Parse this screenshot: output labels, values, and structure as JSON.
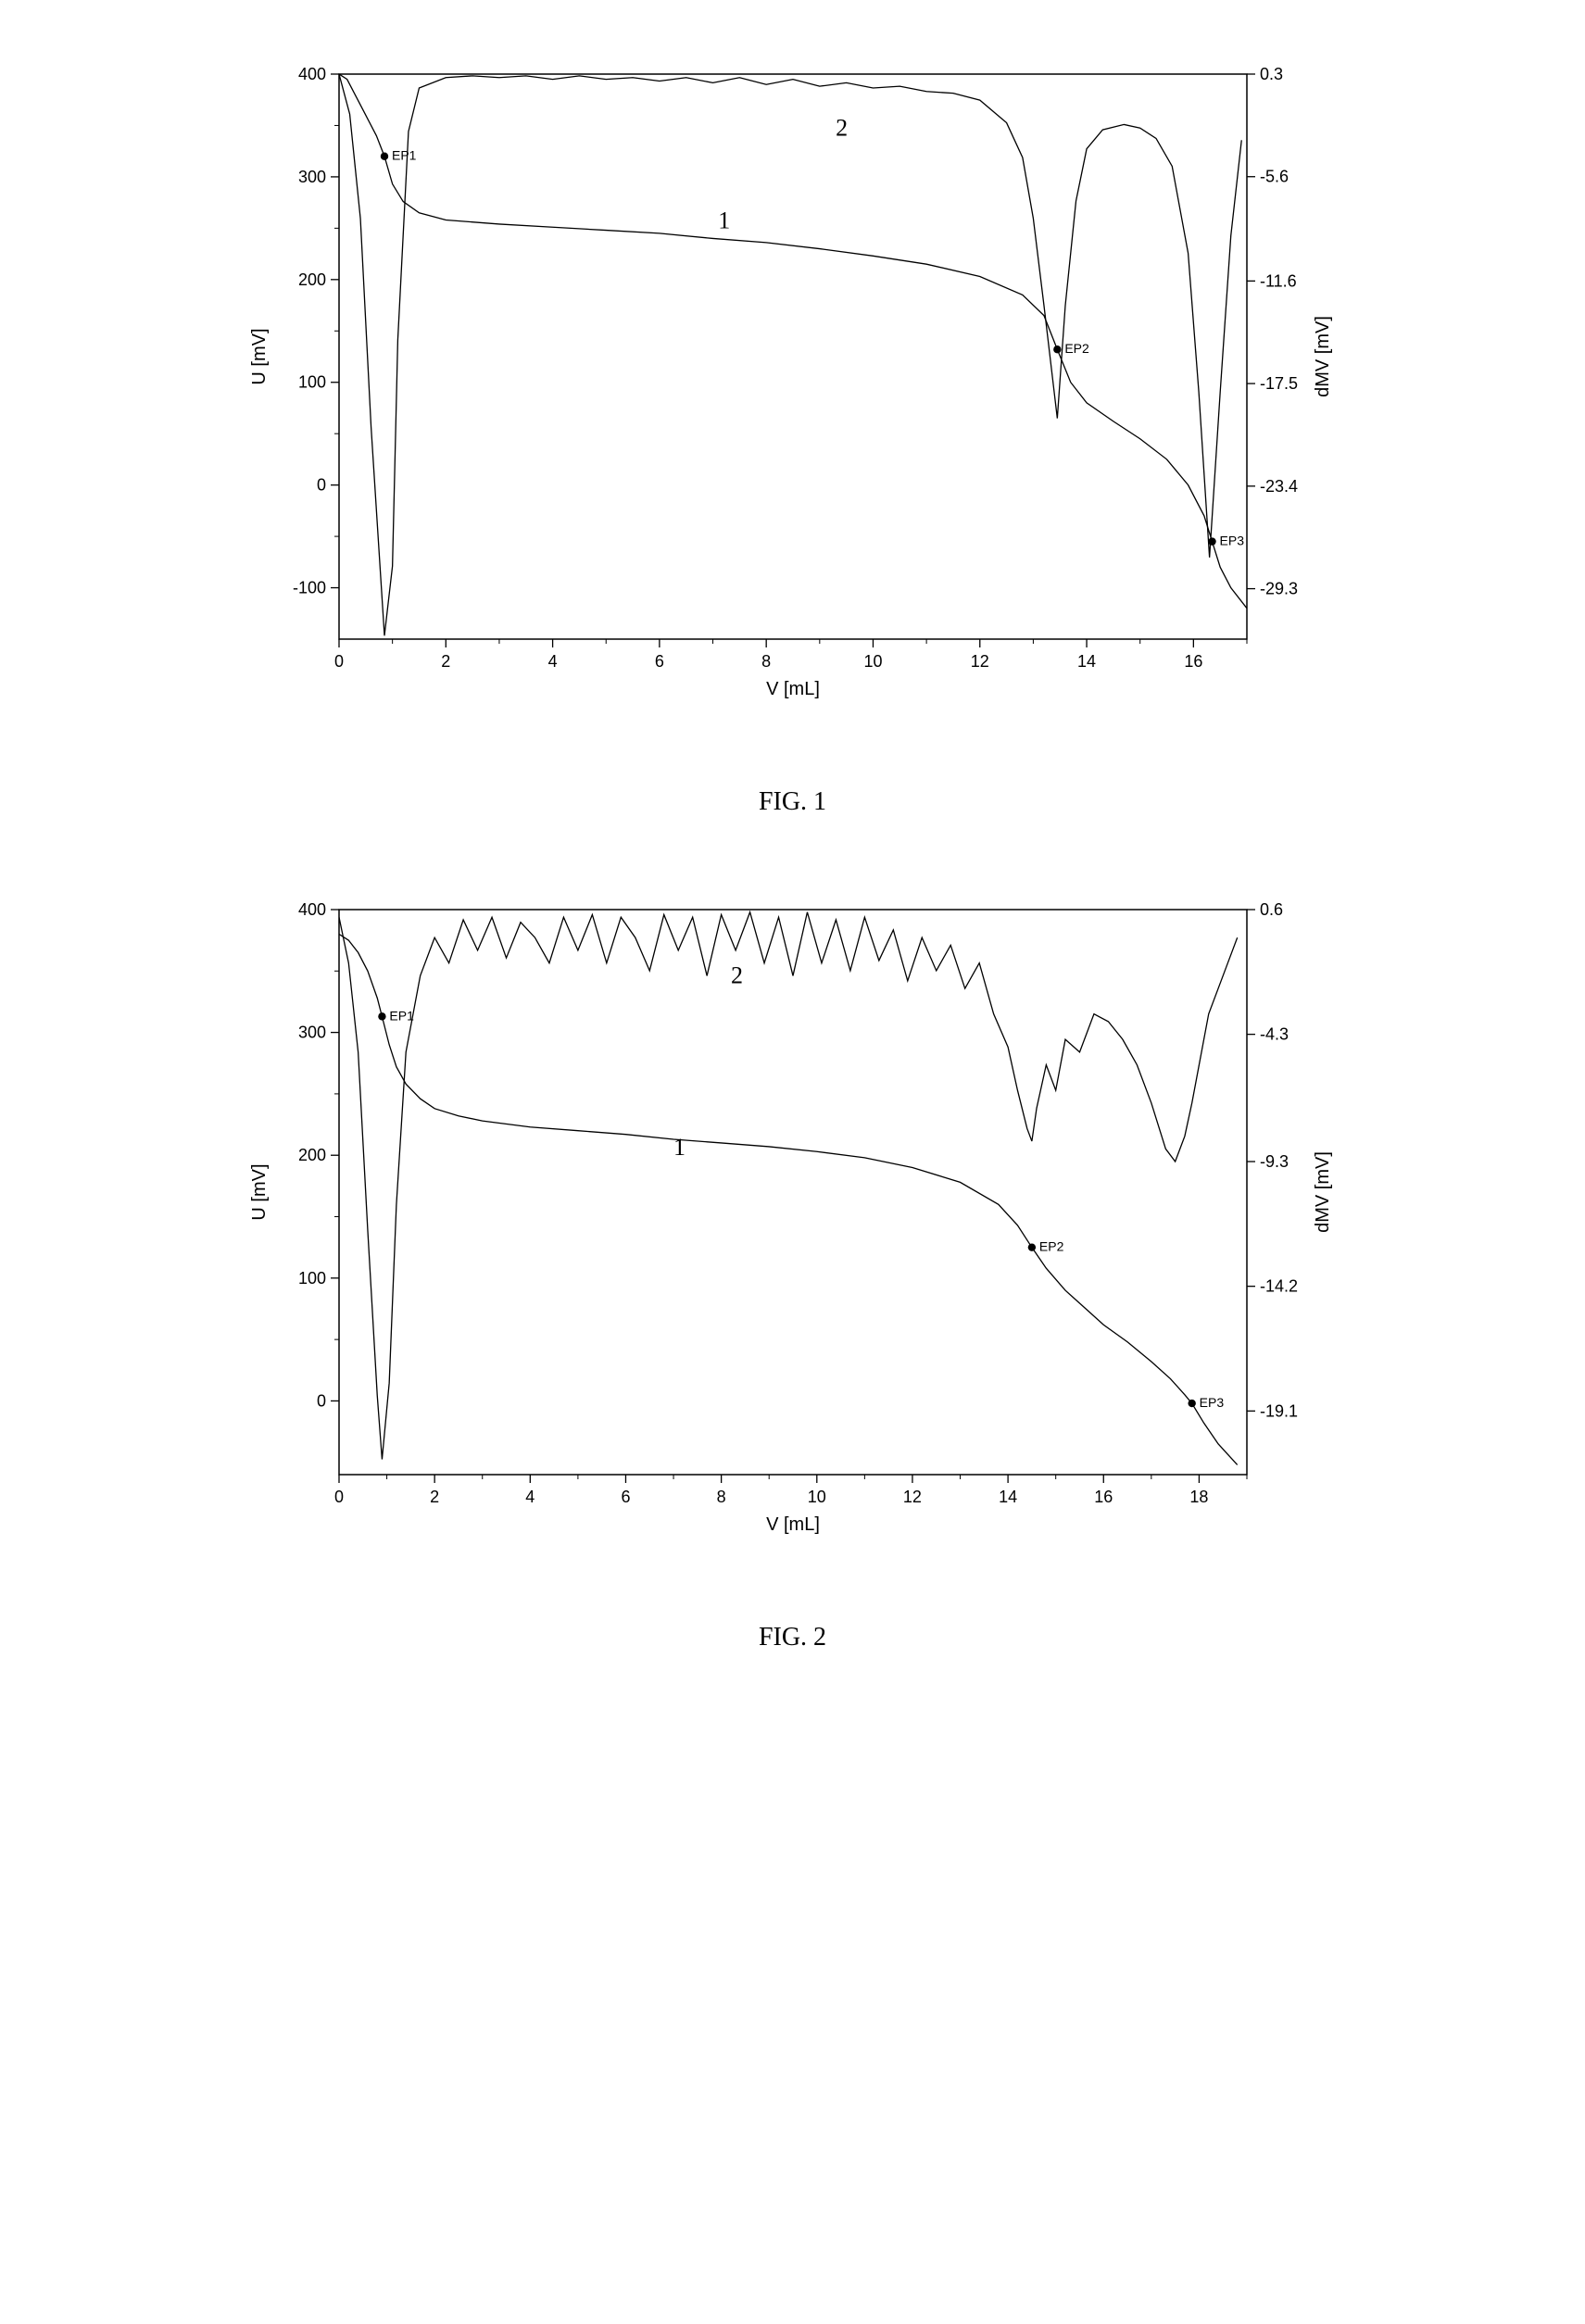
{
  "fig1": {
    "caption": "FIG. 1",
    "xlabel": "V [mL]",
    "ylabel_left": "U [mV]",
    "ylabel_right": "dMV [mV]",
    "xlim": [
      0,
      17
    ],
    "ylim_left": [
      -150,
      400
    ],
    "ylim_right": [
      -32.2,
      0.3
    ],
    "xtick_step": 2,
    "yticks_left": [
      -100,
      0,
      100,
      200,
      300,
      400
    ],
    "yticks_right": [
      0.3,
      -5.6,
      -11.6,
      -17.5,
      -23.4,
      -29.3
    ],
    "colors": {
      "axis": "#000000",
      "curve1": "#000000",
      "curve2": "#000000",
      "bg": "#ffffff"
    },
    "fontsize": {
      "tick": 18,
      "label": 20,
      "annotation": 26,
      "ep": 14
    },
    "line_width": 1.3,
    "annotations": [
      {
        "text": "1",
        "x": 7.1,
        "y_left": 250
      },
      {
        "text": "2",
        "x": 9.3,
        "y_left": 340
      }
    ],
    "ep_markers": [
      {
        "label": "EP1",
        "x": 0.85,
        "y_left": 320
      },
      {
        "label": "EP2",
        "x": 13.45,
        "y_left": 132
      },
      {
        "label": "EP3",
        "x": 16.35,
        "y_left": -55
      }
    ],
    "curve1_data": [
      {
        "x": 0,
        "y": 400
      },
      {
        "x": 0.15,
        "y": 395
      },
      {
        "x": 0.3,
        "y": 380
      },
      {
        "x": 0.5,
        "y": 360
      },
      {
        "x": 0.7,
        "y": 340
      },
      {
        "x": 0.85,
        "y": 320
      },
      {
        "x": 1.0,
        "y": 293
      },
      {
        "x": 1.2,
        "y": 276
      },
      {
        "x": 1.5,
        "y": 265
      },
      {
        "x": 2.0,
        "y": 258
      },
      {
        "x": 3.0,
        "y": 254
      },
      {
        "x": 4.0,
        "y": 251
      },
      {
        "x": 5.0,
        "y": 248
      },
      {
        "x": 6.0,
        "y": 245
      },
      {
        "x": 7.0,
        "y": 240
      },
      {
        "x": 8.0,
        "y": 236
      },
      {
        "x": 9.0,
        "y": 230
      },
      {
        "x": 10.0,
        "y": 223
      },
      {
        "x": 11.0,
        "y": 215
      },
      {
        "x": 12.0,
        "y": 203
      },
      {
        "x": 12.8,
        "y": 185
      },
      {
        "x": 13.2,
        "y": 165
      },
      {
        "x": 13.45,
        "y": 132
      },
      {
        "x": 13.7,
        "y": 100
      },
      {
        "x": 14.0,
        "y": 80
      },
      {
        "x": 14.5,
        "y": 62
      },
      {
        "x": 15.0,
        "y": 45
      },
      {
        "x": 15.5,
        "y": 25
      },
      {
        "x": 15.9,
        "y": 0
      },
      {
        "x": 16.2,
        "y": -30
      },
      {
        "x": 16.35,
        "y": -55
      },
      {
        "x": 16.5,
        "y": -80
      },
      {
        "x": 16.7,
        "y": -100
      },
      {
        "x": 17.0,
        "y": -120
      }
    ],
    "curve2_data": [
      {
        "x": 0,
        "y": 0.3
      },
      {
        "x": 0.2,
        "y": -2.0
      },
      {
        "x": 0.4,
        "y": -8.0
      },
      {
        "x": 0.6,
        "y": -20.0
      },
      {
        "x": 0.85,
        "y": -32.0
      },
      {
        "x": 1.0,
        "y": -28.0
      },
      {
        "x": 1.1,
        "y": -15.0
      },
      {
        "x": 1.3,
        "y": -3.0
      },
      {
        "x": 1.5,
        "y": -0.5
      },
      {
        "x": 2.0,
        "y": 0.1
      },
      {
        "x": 2.5,
        "y": 0.2
      },
      {
        "x": 3.0,
        "y": 0.1
      },
      {
        "x": 3.5,
        "y": 0.2
      },
      {
        "x": 4.0,
        "y": 0.0
      },
      {
        "x": 4.5,
        "y": 0.2
      },
      {
        "x": 5.0,
        "y": 0.0
      },
      {
        "x": 5.5,
        "y": 0.1
      },
      {
        "x": 6.0,
        "y": -0.1
      },
      {
        "x": 6.5,
        "y": 0.1
      },
      {
        "x": 7.0,
        "y": -0.2
      },
      {
        "x": 7.5,
        "y": 0.1
      },
      {
        "x": 8.0,
        "y": -0.3
      },
      {
        "x": 8.5,
        "y": 0.0
      },
      {
        "x": 9.0,
        "y": -0.4
      },
      {
        "x": 9.5,
        "y": -0.2
      },
      {
        "x": 10.0,
        "y": -0.5
      },
      {
        "x": 10.5,
        "y": -0.4
      },
      {
        "x": 11.0,
        "y": -0.7
      },
      {
        "x": 11.5,
        "y": -0.8
      },
      {
        "x": 12.0,
        "y": -1.2
      },
      {
        "x": 12.5,
        "y": -2.5
      },
      {
        "x": 12.8,
        "y": -4.5
      },
      {
        "x": 13.0,
        "y": -8.0
      },
      {
        "x": 13.2,
        "y": -13.0
      },
      {
        "x": 13.45,
        "y": -19.5
      },
      {
        "x": 13.6,
        "y": -13.0
      },
      {
        "x": 13.8,
        "y": -7.0
      },
      {
        "x": 14.0,
        "y": -4.0
      },
      {
        "x": 14.3,
        "y": -2.9
      },
      {
        "x": 14.7,
        "y": -2.6
      },
      {
        "x": 15.0,
        "y": -2.8
      },
      {
        "x": 15.3,
        "y": -3.4
      },
      {
        "x": 15.6,
        "y": -5.0
      },
      {
        "x": 15.9,
        "y": -10.0
      },
      {
        "x": 16.1,
        "y": -18.0
      },
      {
        "x": 16.3,
        "y": -27.5
      },
      {
        "x": 16.5,
        "y": -18.0
      },
      {
        "x": 16.7,
        "y": -9.0
      },
      {
        "x": 16.9,
        "y": -3.5
      }
    ]
  },
  "fig2": {
    "caption": "FIG. 2",
    "xlabel": "V [mL]",
    "ylabel_left": "U [mV]",
    "ylabel_right": "dMV [mV]",
    "xlim": [
      0,
      19
    ],
    "ylim_left": [
      -60,
      400
    ],
    "ylim_right": [
      -21.6,
      0.6
    ],
    "xtick_step": 2,
    "yticks_left": [
      0,
      100,
      200,
      300,
      400
    ],
    "yticks_right": [
      0.6,
      -4.3,
      -9.3,
      -14.2,
      -19.1
    ],
    "colors": {
      "axis": "#000000",
      "curve1": "#000000",
      "curve2": "#000000",
      "bg": "#ffffff"
    },
    "fontsize": {
      "tick": 18,
      "label": 20,
      "annotation": 26,
      "ep": 14
    },
    "line_width": 1.3,
    "annotations": [
      {
        "text": "1",
        "x": 7.0,
        "y_left": 200
      },
      {
        "text": "2",
        "x": 8.2,
        "y_left": 340
      }
    ],
    "ep_markers": [
      {
        "label": "EP1",
        "x": 0.9,
        "y_left": 313
      },
      {
        "label": "EP2",
        "x": 14.5,
        "y_left": 125
      },
      {
        "label": "EP3",
        "x": 17.85,
        "y_left": -2
      }
    ],
    "curve1_data": [
      {
        "x": 0,
        "y": 380
      },
      {
        "x": 0.2,
        "y": 375
      },
      {
        "x": 0.4,
        "y": 365
      },
      {
        "x": 0.6,
        "y": 350
      },
      {
        "x": 0.8,
        "y": 328
      },
      {
        "x": 0.9,
        "y": 313
      },
      {
        "x": 1.05,
        "y": 290
      },
      {
        "x": 1.2,
        "y": 272
      },
      {
        "x": 1.4,
        "y": 258
      },
      {
        "x": 1.7,
        "y": 246
      },
      {
        "x": 2.0,
        "y": 238
      },
      {
        "x": 2.5,
        "y": 232
      },
      {
        "x": 3.0,
        "y": 228
      },
      {
        "x": 4.0,
        "y": 223
      },
      {
        "x": 5.0,
        "y": 220
      },
      {
        "x": 6.0,
        "y": 217
      },
      {
        "x": 7.0,
        "y": 213
      },
      {
        "x": 8.0,
        "y": 210
      },
      {
        "x": 9.0,
        "y": 207
      },
      {
        "x": 10.0,
        "y": 203
      },
      {
        "x": 11.0,
        "y": 198
      },
      {
        "x": 12.0,
        "y": 190
      },
      {
        "x": 13.0,
        "y": 178
      },
      {
        "x": 13.8,
        "y": 160
      },
      {
        "x": 14.2,
        "y": 143
      },
      {
        "x": 14.5,
        "y": 125
      },
      {
        "x": 14.8,
        "y": 108
      },
      {
        "x": 15.2,
        "y": 90
      },
      {
        "x": 15.6,
        "y": 76
      },
      {
        "x": 16.0,
        "y": 62
      },
      {
        "x": 16.5,
        "y": 48
      },
      {
        "x": 17.0,
        "y": 32
      },
      {
        "x": 17.4,
        "y": 18
      },
      {
        "x": 17.7,
        "y": 5
      },
      {
        "x": 17.85,
        "y": -2
      },
      {
        "x": 18.1,
        "y": -18
      },
      {
        "x": 18.4,
        "y": -35
      },
      {
        "x": 18.8,
        "y": -52
      }
    ],
    "curve2_data": [
      {
        "x": 0,
        "y": 0.3
      },
      {
        "x": 0.2,
        "y": -1.5
      },
      {
        "x": 0.4,
        "y": -5.0
      },
      {
        "x": 0.6,
        "y": -12.0
      },
      {
        "x": 0.8,
        "y": -18.5
      },
      {
        "x": 0.9,
        "y": -21.0
      },
      {
        "x": 1.05,
        "y": -18.0
      },
      {
        "x": 1.2,
        "y": -11.0
      },
      {
        "x": 1.4,
        "y": -5.0
      },
      {
        "x": 1.7,
        "y": -2.0
      },
      {
        "x": 2.0,
        "y": -0.5
      },
      {
        "x": 2.3,
        "y": -1.5
      },
      {
        "x": 2.6,
        "y": 0.2
      },
      {
        "x": 2.9,
        "y": -1.0
      },
      {
        "x": 3.2,
        "y": 0.3
      },
      {
        "x": 3.5,
        "y": -1.3
      },
      {
        "x": 3.8,
        "y": 0.1
      },
      {
        "x": 4.1,
        "y": -0.5
      },
      {
        "x": 4.4,
        "y": -1.5
      },
      {
        "x": 4.7,
        "y": 0.3
      },
      {
        "x": 5.0,
        "y": -1.0
      },
      {
        "x": 5.3,
        "y": 0.4
      },
      {
        "x": 5.6,
        "y": -1.5
      },
      {
        "x": 5.9,
        "y": 0.3
      },
      {
        "x": 6.2,
        "y": -0.5
      },
      {
        "x": 6.5,
        "y": -1.8
      },
      {
        "x": 6.8,
        "y": 0.4
      },
      {
        "x": 7.1,
        "y": -1.0
      },
      {
        "x": 7.4,
        "y": 0.3
      },
      {
        "x": 7.7,
        "y": -2.0
      },
      {
        "x": 8.0,
        "y": 0.4
      },
      {
        "x": 8.3,
        "y": -1.0
      },
      {
        "x": 8.6,
        "y": 0.5
      },
      {
        "x": 8.9,
        "y": -1.5
      },
      {
        "x": 9.2,
        "y": 0.3
      },
      {
        "x": 9.5,
        "y": -2.0
      },
      {
        "x": 9.8,
        "y": 0.5
      },
      {
        "x": 10.1,
        "y": -1.5
      },
      {
        "x": 10.4,
        "y": 0.2
      },
      {
        "x": 10.7,
        "y": -1.8
      },
      {
        "x": 11.0,
        "y": 0.3
      },
      {
        "x": 11.3,
        "y": -1.4
      },
      {
        "x": 11.6,
        "y": -0.2
      },
      {
        "x": 11.9,
        "y": -2.2
      },
      {
        "x": 12.2,
        "y": -0.5
      },
      {
        "x": 12.5,
        "y": -1.8
      },
      {
        "x": 12.8,
        "y": -0.8
      },
      {
        "x": 13.1,
        "y": -2.5
      },
      {
        "x": 13.4,
        "y": -1.5
      },
      {
        "x": 13.7,
        "y": -3.5
      },
      {
        "x": 14.0,
        "y": -4.8
      },
      {
        "x": 14.2,
        "y": -6.5
      },
      {
        "x": 14.4,
        "y": -8.0
      },
      {
        "x": 14.5,
        "y": -8.5
      },
      {
        "x": 14.6,
        "y": -7.2
      },
      {
        "x": 14.8,
        "y": -5.5
      },
      {
        "x": 15.0,
        "y": -6.5
      },
      {
        "x": 15.2,
        "y": -4.5
      },
      {
        "x": 15.5,
        "y": -5.0
      },
      {
        "x": 15.8,
        "y": -3.5
      },
      {
        "x": 16.1,
        "y": -3.8
      },
      {
        "x": 16.4,
        "y": -4.5
      },
      {
        "x": 16.7,
        "y": -5.5
      },
      {
        "x": 17.0,
        "y": -7.0
      },
      {
        "x": 17.3,
        "y": -8.8
      },
      {
        "x": 17.5,
        "y": -9.3
      },
      {
        "x": 17.7,
        "y": -8.3
      },
      {
        "x": 17.85,
        "y": -7.0
      },
      {
        "x": 18.0,
        "y": -5.5
      },
      {
        "x": 18.2,
        "y": -3.5
      },
      {
        "x": 18.4,
        "y": -2.5
      },
      {
        "x": 18.6,
        "y": -1.5
      },
      {
        "x": 18.8,
        "y": -0.5
      }
    ]
  }
}
